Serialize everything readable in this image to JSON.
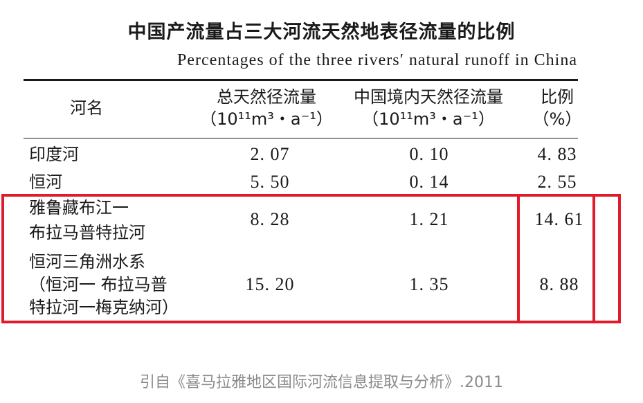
{
  "title_cn": "中国产流量占三大河流天然地表径流量的比例",
  "title_en": "Percentages of the three rivers′ natural runoff in China",
  "headers": {
    "name": "河名",
    "total": {
      "label": "总天然径流量",
      "unit": "（10¹¹m³・a⁻¹）"
    },
    "china": {
      "label": "中国境内天然径流量",
      "unit": "（10¹¹m³・a⁻¹）"
    },
    "ratio": {
      "label": "比例",
      "unit": "（%）"
    }
  },
  "rows": [
    {
      "name_lines": [
        "印度河"
      ],
      "total": "2. 07",
      "china": "0. 10",
      "ratio": "4. 83"
    },
    {
      "name_lines": [
        "恒河"
      ],
      "total": "5. 50",
      "china": "0. 14",
      "ratio": "2. 55"
    },
    {
      "name_lines": [
        "雅鲁藏布江一",
        "布拉马普特拉河"
      ],
      "total": "8. 28",
      "china": "1. 21",
      "ratio": "14. 61"
    },
    {
      "name_lines": [
        "恒河三角洲水系",
        "（恒河一 布拉马普",
        "特拉河一梅克纳河）"
      ],
      "total": "15. 20",
      "china": "1. 35",
      "ratio": "8. 88"
    }
  ],
  "caption": "引自《喜马拉雅地区国际河流信息提取与分析》.2011",
  "colors": {
    "highlight": "#e01b2b",
    "caption": "#8a8a8a"
  }
}
